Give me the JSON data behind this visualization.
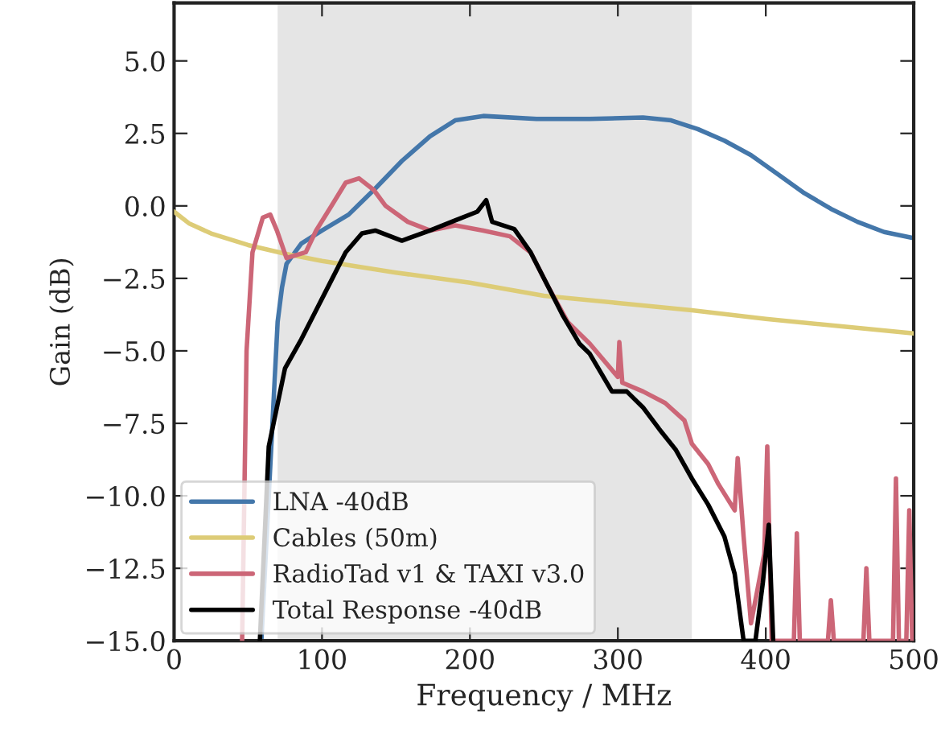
{
  "chart_data": {
    "type": "line",
    "xlabel": "Frequency / MHz",
    "ylabel": "Gain (dB)",
    "xlim": [
      0,
      500
    ],
    "ylim": [
      -15,
      7
    ],
    "xticks": [
      0,
      100,
      200,
      300,
      400,
      500
    ],
    "yticks": [
      {
        "value": -15,
        "label": "−15.0"
      },
      {
        "value": -12.5,
        "label": "−12.5"
      },
      {
        "value": -10,
        "label": "−10.0"
      },
      {
        "value": -7.5,
        "label": "−7.5"
      },
      {
        "value": -5,
        "label": "−5.0"
      },
      {
        "value": -2.5,
        "label": "−2.5"
      },
      {
        "value": 0,
        "label": "0.0"
      },
      {
        "value": 2.5,
        "label": "2.5"
      },
      {
        "value": 5,
        "label": "5.0"
      }
    ],
    "grid": false,
    "legend": "bottom left",
    "line_style": "solid",
    "marker": "none",
    "bands": [
      {
        "axis": "x",
        "from": 70,
        "to": 350,
        "color": "#e5e5e5"
      }
    ],
    "series": [
      {
        "name": "LNA -40dB",
        "color": "#4477aa",
        "x": [
          59,
          67,
          70,
          73,
          76,
          86,
          100,
          118,
          136,
          154,
          173,
          190,
          209,
          245,
          281,
          317,
          336,
          354,
          372,
          390,
          408,
          426,
          444,
          462,
          480,
          499
        ],
        "values": [
          -15,
          -7,
          -4,
          -2.8,
          -2.0,
          -1.3,
          -0.85,
          -0.3,
          0.6,
          1.55,
          2.4,
          2.95,
          3.1,
          3.0,
          3.0,
          3.05,
          2.95,
          2.65,
          2.25,
          1.75,
          1.1,
          0.44,
          -0.1,
          -0.55,
          -0.9,
          -1.1
        ]
      },
      {
        "name": "Cables (50m)",
        "color": "#ddcc77",
        "x": [
          0,
          10,
          25,
          50,
          75,
          100,
          150,
          200,
          250,
          300,
          350,
          400,
          450,
          500
        ],
        "values": [
          -0.2,
          -0.6,
          -0.95,
          -1.35,
          -1.65,
          -1.9,
          -2.3,
          -2.65,
          -3.1,
          -3.35,
          -3.6,
          -3.9,
          -4.15,
          -4.4
        ]
      },
      {
        "name": "RadioTad v1 & TAXI v3.0",
        "color": "#cc6677",
        "x": [
          46,
          49,
          53,
          60,
          65,
          69.5,
          76,
          89,
          96,
          107,
          116,
          125,
          135,
          143,
          158,
          173,
          190,
          209,
          227,
          241,
          252,
          266,
          281,
          300,
          301,
          303,
          317,
          332,
          345,
          350,
          361,
          368,
          379,
          381,
          385,
          390,
          399,
          401,
          404,
          419,
          421,
          423,
          442,
          444,
          446,
          466,
          468,
          470,
          486,
          488,
          490,
          495,
          497,
          499
        ],
        "values": [
          -15,
          -5,
          -1.6,
          -0.4,
          -0.3,
          -0.85,
          -1.8,
          -1.6,
          -0.85,
          0.05,
          0.8,
          0.95,
          0.55,
          0.0,
          -0.55,
          -0.85,
          -0.67,
          -0.85,
          -1.05,
          -1.6,
          -2.7,
          -4.0,
          -4.75,
          -5.9,
          -4.7,
          -6.1,
          -6.4,
          -6.8,
          -7.4,
          -8.2,
          -8.9,
          -9.6,
          -10.5,
          -8.7,
          -11.4,
          -14.4,
          -12,
          -8.3,
          -15,
          -15,
          -11.3,
          -15,
          -15,
          -13.6,
          -15,
          -15,
          -12.5,
          -15,
          -15,
          -9.4,
          -15,
          -15,
          -10.5,
          -15
        ]
      },
      {
        "name": "Total Response -40dB",
        "color": "#000000",
        "x": [
          58,
          64,
          75,
          86,
          96,
          107,
          116,
          127,
          136,
          154,
          173,
          190,
          205,
          211,
          215,
          230,
          241,
          252,
          263,
          274,
          281,
          296,
          306,
          317,
          328,
          339,
          350,
          361,
          372,
          379,
          385,
          393,
          398,
          402,
          405
        ],
        "values": [
          -15,
          -8.3,
          -5.6,
          -4.6,
          -3.6,
          -2.5,
          -1.6,
          -0.95,
          -0.85,
          -1.2,
          -0.85,
          -0.5,
          -0.2,
          0.2,
          -0.55,
          -0.8,
          -1.6,
          -2.7,
          -3.8,
          -4.75,
          -5.1,
          -6.4,
          -6.4,
          -6.95,
          -7.7,
          -8.4,
          -9.4,
          -10.3,
          -11.4,
          -12.7,
          -15,
          -15,
          -13,
          -11.0,
          -15
        ]
      }
    ]
  }
}
